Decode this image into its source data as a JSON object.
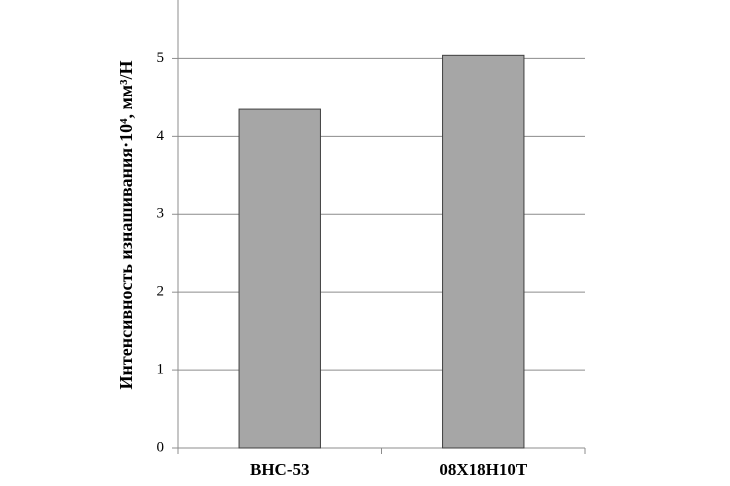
{
  "chart_data": {
    "type": "bar",
    "y_label": "Интенсивность изнашивания·10⁴, мм³/Н",
    "categories": [
      "ВНС-53",
      "08Х18Н10Т"
    ],
    "values": [
      4.35,
      5.04
    ],
    "color": "#a6a6a6",
    "ylim": [
      0,
      5.75
    ],
    "yticks": [
      0,
      1,
      2,
      3,
      4,
      5
    ],
    "grid": true
  }
}
